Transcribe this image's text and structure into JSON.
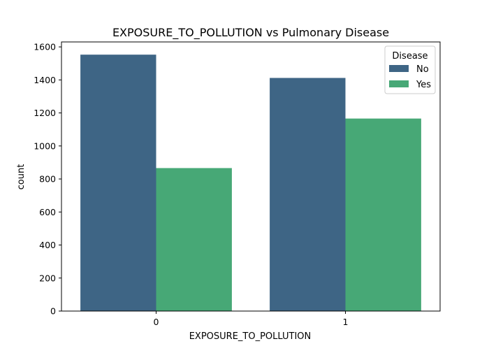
{
  "chart_data": {
    "type": "bar",
    "title": "EXPOSURE_TO_POLLUTION vs Pulmonary Disease",
    "xlabel": "EXPOSURE_TO_POLLUTION",
    "ylabel": "count",
    "categories": [
      "0",
      "1"
    ],
    "series": [
      {
        "name": "No",
        "values": [
          1553,
          1412
        ],
        "color": "#3e6585"
      },
      {
        "name": "Yes",
        "values": [
          866,
          1166
        ],
        "color": "#47a876"
      }
    ],
    "ylim": [
      0,
      1630
    ],
    "yticks": [
      0,
      200,
      400,
      600,
      800,
      1000,
      1200,
      1400,
      1600
    ],
    "legend": {
      "title": "Disease",
      "placement": "top-right"
    },
    "grid": false
  }
}
